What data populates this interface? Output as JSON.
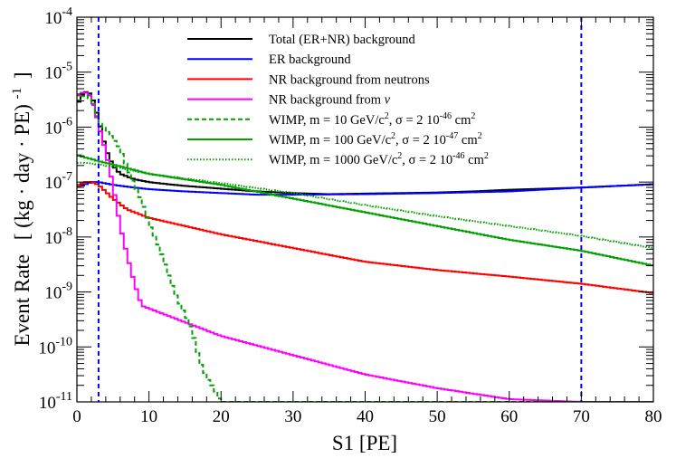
{
  "chart_data": {
    "type": "line",
    "step": true,
    "xlabel": "S1 [PE]",
    "ylabel_main": "Event Rate",
    "ylabel_units": "[ (kg · day · PE)",
    "ylabel_units_exp": "-1",
    "ylabel_units_close": "]",
    "xlim": [
      0,
      80
    ],
    "ylim_log10": [
      -11,
      -4
    ],
    "yscale": "log",
    "grid": false,
    "legend_position": "top-right",
    "xticks": [
      0,
      10,
      20,
      30,
      40,
      50,
      60,
      70,
      80
    ],
    "xtick_labels": [
      "0",
      "10",
      "20",
      "30",
      "40",
      "50",
      "60",
      "70",
      "80"
    ],
    "yticks": [
      {
        "base": "10",
        "exp": "-11",
        "log": -11
      },
      {
        "base": "10",
        "exp": "-10",
        "log": -10
      },
      {
        "base": "10",
        "exp": "-9",
        "log": -9
      },
      {
        "base": "10",
        "exp": "-8",
        "log": -8
      },
      {
        "base": "10",
        "exp": "-7",
        "log": -7
      },
      {
        "base": "10",
        "exp": "-6",
        "log": -6
      },
      {
        "base": "10",
        "exp": "-5",
        "log": -5
      },
      {
        "base": "10",
        "exp": "-4",
        "log": -4
      }
    ],
    "vlines": [
      {
        "x": 3,
        "style": "dashed",
        "color": "#0000ff"
      },
      {
        "x": 70,
        "style": "dashed",
        "color": "#0000ff"
      }
    ],
    "series": [
      {
        "name": "total",
        "legend": [
          {
            "t": "Total (ER+NR) background"
          }
        ],
        "color": "#000000",
        "dash": "solid",
        "x": [
          0,
          1,
          2,
          3,
          4,
          5,
          6,
          8,
          10,
          12,
          15,
          20,
          25,
          30,
          35,
          40,
          45,
          50,
          55,
          60,
          65,
          70,
          75,
          80
        ],
        "log10y": [
          -5.6,
          -5.35,
          -5.4,
          -5.85,
          -6.4,
          -6.7,
          -6.85,
          -6.95,
          -7.0,
          -7.03,
          -7.07,
          -7.12,
          -7.17,
          -7.2,
          -7.22,
          -7.21,
          -7.2,
          -7.19,
          -7.17,
          -7.14,
          -7.12,
          -7.1,
          -7.07,
          -7.04
        ]
      },
      {
        "name": "er",
        "legend": [
          {
            "t": "ER background"
          }
        ],
        "color": "#0000ff",
        "dash": "solid",
        "x": [
          0,
          1,
          2,
          3,
          5,
          8,
          10,
          15,
          20,
          25,
          30,
          40,
          50,
          60,
          70,
          80
        ],
        "log10y": [
          -7.1,
          -7.05,
          -7.0,
          -7.0,
          -7.05,
          -7.1,
          -7.13,
          -7.17,
          -7.2,
          -7.23,
          -7.23,
          -7.22,
          -7.2,
          -7.17,
          -7.1,
          -7.04
        ]
      },
      {
        "name": "nr-neutrons",
        "legend": [
          {
            "t": "NR background from neutrons"
          }
        ],
        "color": "#ff0000",
        "dash": "solid",
        "x": [
          0,
          1,
          2,
          3,
          5,
          7,
          10,
          15,
          20,
          30,
          40,
          50,
          60,
          70,
          80
        ],
        "log10y": [
          -7.1,
          -7.0,
          -7.0,
          -7.05,
          -7.3,
          -7.5,
          -7.65,
          -7.8,
          -7.95,
          -8.2,
          -8.45,
          -8.6,
          -8.72,
          -8.85,
          -9.02
        ]
      },
      {
        "name": "nr-nu",
        "legend": [
          {
            "t": "NR background from "
          },
          {
            "t": "ν",
            "i": true
          }
        ],
        "color": "#ff00ff",
        "dash": "solid",
        "x": [
          0,
          1,
          2,
          3,
          4,
          5,
          6,
          7,
          8,
          9,
          10,
          12,
          15,
          20,
          30,
          40,
          50,
          60,
          70,
          75,
          80
        ],
        "log10y": [
          -5.45,
          -5.35,
          -5.45,
          -5.95,
          -6.45,
          -7.05,
          -7.8,
          -8.35,
          -8.85,
          -9.25,
          -9.3,
          -9.4,
          -9.55,
          -9.8,
          -10.15,
          -10.5,
          -10.75,
          -10.95,
          -11.0,
          -11.0,
          -11.0
        ]
      },
      {
        "name": "wimp-10",
        "legend": [
          {
            "t": "WIMP, m = 10 GeV/c"
          },
          {
            "t": "2",
            "sup": true
          },
          {
            "t": ", σ = 2 10"
          },
          {
            "t": "-46",
            "sup": true
          },
          {
            "t": " cm"
          },
          {
            "t": "2",
            "sup": true
          }
        ],
        "color": "#00a000",
        "dash": "5,3",
        "x": [
          0,
          1,
          2,
          3,
          4,
          5,
          6,
          7,
          8,
          9,
          10,
          11,
          12,
          13,
          14,
          15,
          16,
          17,
          18,
          19,
          20,
          21,
          25,
          40,
          60,
          80
        ],
        "log10y": [
          -5.55,
          -5.4,
          -5.5,
          -5.9,
          -6.05,
          -6.2,
          -6.4,
          -6.75,
          -7.05,
          -7.35,
          -7.75,
          -8.05,
          -8.4,
          -8.8,
          -9.15,
          -9.4,
          -9.7,
          -10.25,
          -10.55,
          -10.75,
          -11.0,
          -11.0,
          -11.0,
          -11.0,
          -11.0,
          -11.0
        ]
      },
      {
        "name": "wimp-100",
        "legend": [
          {
            "t": "WIMP, m = 100 GeV/c"
          },
          {
            "t": "2",
            "sup": true
          },
          {
            "t": ", σ = 2 10"
          },
          {
            "t": "-47",
            "sup": true
          },
          {
            "t": " cm"
          },
          {
            "t": "2",
            "sup": true
          }
        ],
        "color": "#00a000",
        "dash": "solid",
        "x": [
          0,
          1,
          2,
          3,
          5,
          10,
          20,
          30,
          40,
          50,
          60,
          70,
          80
        ],
        "log10y": [
          -6.5,
          -6.55,
          -6.58,
          -6.62,
          -6.68,
          -6.85,
          -7.05,
          -7.3,
          -7.55,
          -7.8,
          -8.05,
          -8.25,
          -8.52
        ]
      },
      {
        "name": "wimp-1000",
        "legend": [
          {
            "t": "WIMP, m = 1000 GeV/c"
          },
          {
            "t": "2",
            "sup": true
          },
          {
            "t": ", σ = 2 10"
          },
          {
            "t": "-46",
            "sup": true
          },
          {
            "t": " cm"
          },
          {
            "t": "2",
            "sup": true
          }
        ],
        "color": "#00a000",
        "dash": "1.5,2",
        "x": [
          0,
          1,
          2,
          3,
          5,
          10,
          20,
          30,
          40,
          50,
          60,
          70,
          80
        ],
        "log10y": [
          -6.65,
          -6.65,
          -6.66,
          -6.68,
          -6.72,
          -6.85,
          -7.02,
          -7.2,
          -7.42,
          -7.62,
          -7.8,
          -7.98,
          -8.2
        ]
      }
    ]
  }
}
